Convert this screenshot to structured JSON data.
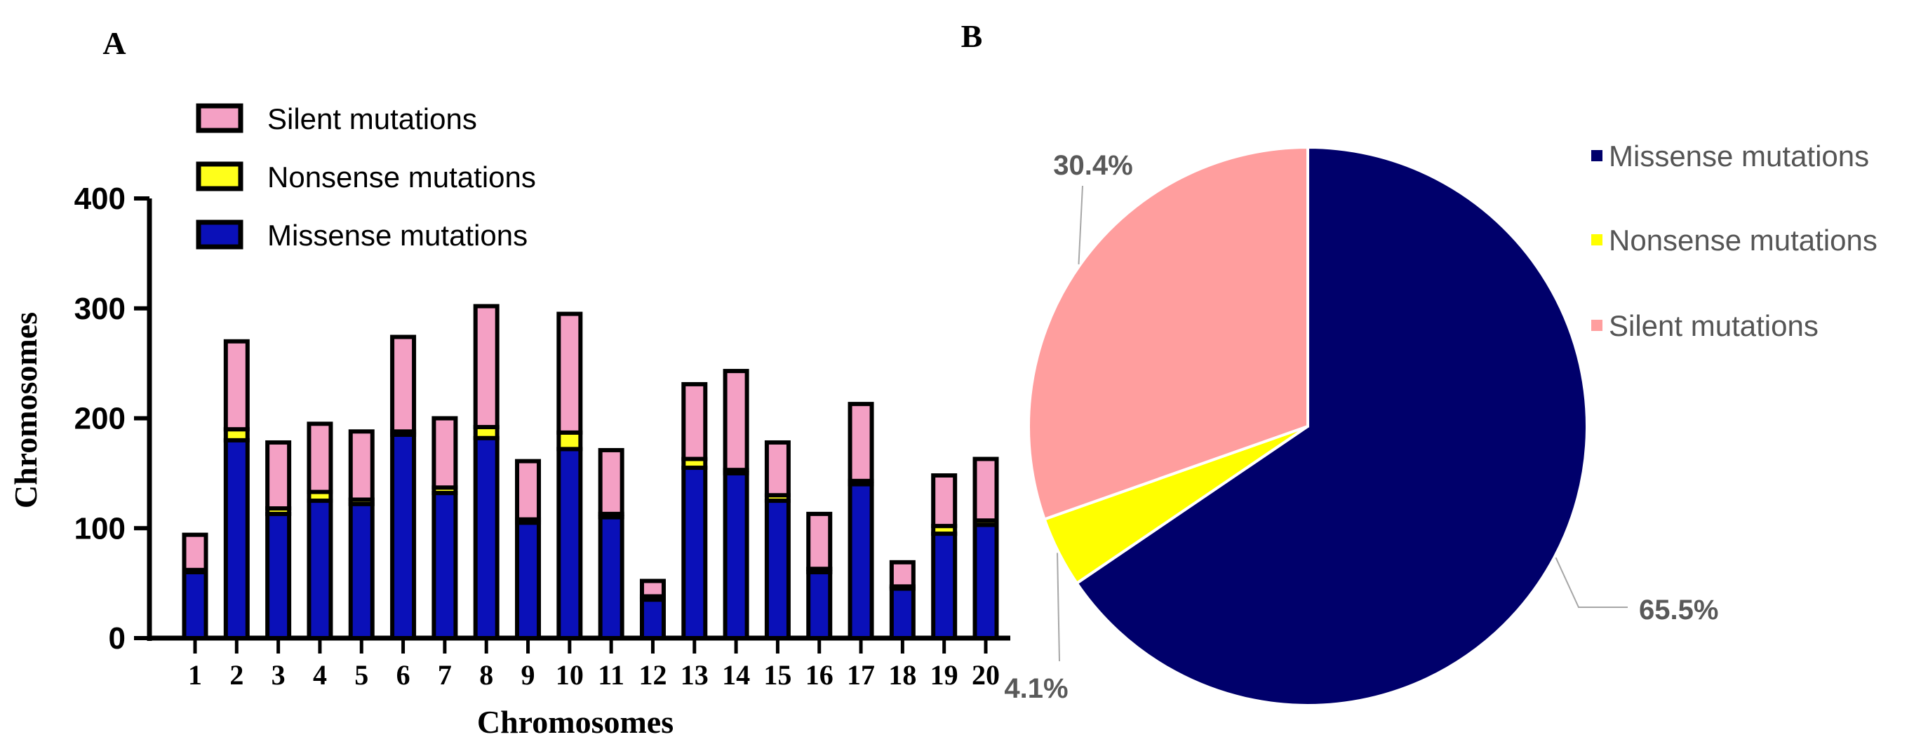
{
  "panels": {
    "a_label": "A",
    "b_label": "B"
  },
  "colors": {
    "missense_bar": "#0a10b8",
    "nonsense_bar": "#ffff1a",
    "silent_bar": "#f4a0c4",
    "bar_outline": "#000000",
    "missense_pie": "#00006b",
    "nonsense_pie": "#ffff00",
    "silent_pie": "#ff9e9e",
    "pie_label_text": "#595959",
    "leader_line": "#a6a6a6",
    "legend_text": "#555555"
  },
  "chart_data": [
    {
      "type": "bar",
      "stacked": true,
      "title": "",
      "xlabel": "Chromosomes",
      "ylabel": "Chromosomes",
      "ylim": [
        0,
        400
      ],
      "yticks": [
        0,
        100,
        200,
        300,
        400
      ],
      "categories": [
        "1",
        "2",
        "3",
        "4",
        "5",
        "6",
        "7",
        "8",
        "9",
        "10",
        "11",
        "12",
        "13",
        "14",
        "15",
        "16",
        "17",
        "18",
        "19",
        "20"
      ],
      "series": [
        {
          "name": "Missense mutations",
          "color_key": "missense_bar",
          "values": [
            60,
            180,
            113,
            125,
            122,
            185,
            132,
            182,
            105,
            172,
            110,
            35,
            155,
            150,
            125,
            60,
            140,
            45,
            95,
            103
          ]
        },
        {
          "name": "Nonsense mutations",
          "color_key": "nonsense_bar",
          "values": [
            2,
            10,
            5,
            8,
            4,
            3,
            5,
            10,
            3,
            15,
            3,
            3,
            8,
            3,
            5,
            3,
            3,
            2,
            7,
            4
          ]
        },
        {
          "name": "Silent mutations",
          "color_key": "silent_bar",
          "values": [
            32,
            80,
            60,
            62,
            62,
            86,
            63,
            110,
            53,
            108,
            58,
            14,
            68,
            90,
            48,
            50,
            70,
            22,
            46,
            56
          ]
        }
      ],
      "legend": {
        "placement": "top-left",
        "entries": [
          "Silent mutations",
          "Nonsense mutations",
          "Missense mutations"
        ]
      }
    },
    {
      "type": "pie",
      "title": "",
      "slices": [
        {
          "name": "Missense mutations",
          "value": 65.5,
          "label": "65.5%",
          "color_key": "missense_pie"
        },
        {
          "name": "Nonsense mutations",
          "value": 4.1,
          "label": "4.1%",
          "color_key": "nonsense_pie"
        },
        {
          "name": "Silent mutations",
          "value": 30.4,
          "label": "30.4%",
          "color_key": "silent_pie"
        }
      ],
      "legend": {
        "placement": "right",
        "entries": [
          "Missense mutations",
          "Nonsense mutations",
          "Silent mutations"
        ]
      }
    }
  ]
}
